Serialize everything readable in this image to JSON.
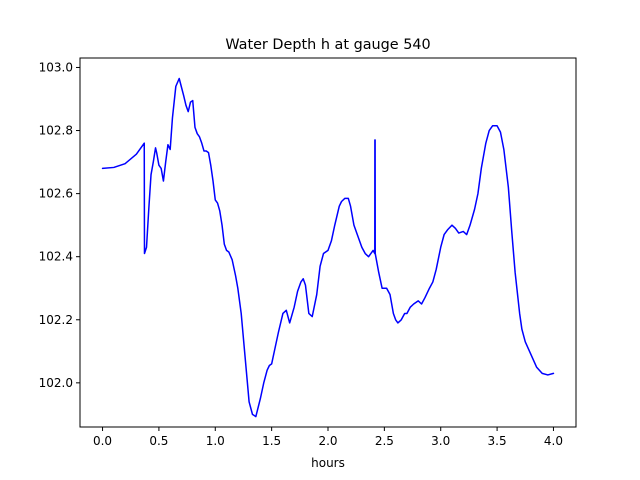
{
  "chart_data": {
    "type": "line",
    "title": "Water Depth h at gauge 540",
    "xlabel": "hours",
    "ylabel": "",
    "xlim": [
      -0.2,
      4.2
    ],
    "ylim": [
      101.86,
      103.03
    ],
    "xticks": [
      0.0,
      0.5,
      1.0,
      1.5,
      2.0,
      2.5,
      3.0,
      3.5,
      4.0
    ],
    "xtick_labels": [
      "0.0",
      "0.5",
      "1.0",
      "1.5",
      "2.0",
      "2.5",
      "3.0",
      "3.5",
      "4.0"
    ],
    "yticks": [
      102.0,
      102.2,
      102.4,
      102.6,
      102.8,
      103.0
    ],
    "ytick_labels": [
      "102.0",
      "102.2",
      "102.4",
      "102.6",
      "102.8",
      "103.0"
    ],
    "grid": false,
    "series": [
      {
        "name": "",
        "color": "#0000ff",
        "x": [
          0.0,
          0.1,
          0.2,
          0.3,
          0.37,
          0.372,
          0.39,
          0.41,
          0.43,
          0.45,
          0.47,
          0.48,
          0.5,
          0.52,
          0.54,
          0.56,
          0.58,
          0.6,
          0.62,
          0.65,
          0.68,
          0.72,
          0.74,
          0.76,
          0.78,
          0.8,
          0.82,
          0.84,
          0.86,
          0.88,
          0.9,
          0.92,
          0.94,
          0.96,
          0.98,
          1.0,
          1.02,
          1.04,
          1.06,
          1.08,
          1.1,
          1.12,
          1.15,
          1.18,
          1.2,
          1.23,
          1.26,
          1.28,
          1.3,
          1.33,
          1.36,
          1.4,
          1.43,
          1.46,
          1.48,
          1.5,
          1.53,
          1.56,
          1.6,
          1.63,
          1.66,
          1.7,
          1.73,
          1.76,
          1.78,
          1.8,
          1.83,
          1.86,
          1.9,
          1.93,
          1.96,
          2.0,
          2.03,
          2.06,
          2.1,
          2.12,
          2.15,
          2.18,
          2.2,
          2.23,
          2.26,
          2.3,
          2.33,
          2.36,
          2.4,
          2.415,
          2.416,
          2.418,
          2.419,
          2.45,
          2.48,
          2.52,
          2.55,
          2.58,
          2.6,
          2.62,
          2.65,
          2.68,
          2.7,
          2.73,
          2.76,
          2.8,
          2.83,
          2.86,
          2.9,
          2.93,
          2.96,
          3.0,
          3.03,
          3.06,
          3.1,
          3.13,
          3.16,
          3.2,
          3.23,
          3.26,
          3.3,
          3.33,
          3.36,
          3.4,
          3.43,
          3.46,
          3.5,
          3.53,
          3.56,
          3.6,
          3.63,
          3.66,
          3.7,
          3.72,
          3.75,
          3.8,
          3.85,
          3.9,
          3.95,
          4.0
        ],
        "y": [
          102.68,
          102.683,
          102.695,
          102.725,
          102.76,
          102.41,
          102.43,
          102.55,
          102.66,
          102.7,
          102.745,
          102.73,
          102.69,
          102.68,
          102.64,
          102.7,
          102.755,
          102.74,
          102.84,
          102.94,
          102.965,
          102.91,
          102.88,
          102.86,
          102.89,
          102.895,
          102.81,
          102.79,
          102.78,
          102.76,
          102.735,
          102.735,
          102.73,
          102.69,
          102.64,
          102.58,
          102.57,
          102.545,
          102.5,
          102.44,
          102.42,
          102.415,
          102.39,
          102.34,
          102.3,
          102.22,
          102.1,
          102.02,
          101.94,
          101.9,
          101.893,
          101.95,
          102.0,
          102.04,
          102.055,
          102.06,
          102.11,
          102.16,
          102.22,
          102.23,
          102.19,
          102.24,
          102.29,
          102.32,
          102.33,
          102.31,
          102.22,
          102.21,
          102.28,
          102.37,
          102.41,
          102.42,
          102.45,
          102.5,
          102.56,
          102.575,
          102.585,
          102.585,
          102.56,
          102.5,
          102.47,
          102.43,
          102.41,
          102.4,
          102.42,
          102.41,
          102.77,
          102.77,
          102.41,
          102.35,
          102.3,
          102.3,
          102.28,
          102.22,
          102.2,
          102.19,
          102.2,
          102.22,
          102.22,
          102.24,
          102.25,
          102.26,
          102.25,
          102.27,
          102.3,
          102.32,
          102.36,
          102.43,
          102.47,
          102.485,
          102.5,
          102.49,
          102.475,
          102.48,
          102.47,
          102.5,
          102.55,
          102.6,
          102.68,
          102.76,
          102.8,
          102.815,
          102.815,
          102.795,
          102.74,
          102.62,
          102.48,
          102.35,
          102.22,
          102.17,
          102.13,
          102.09,
          102.05,
          102.03,
          102.025,
          102.03
        ]
      }
    ]
  }
}
